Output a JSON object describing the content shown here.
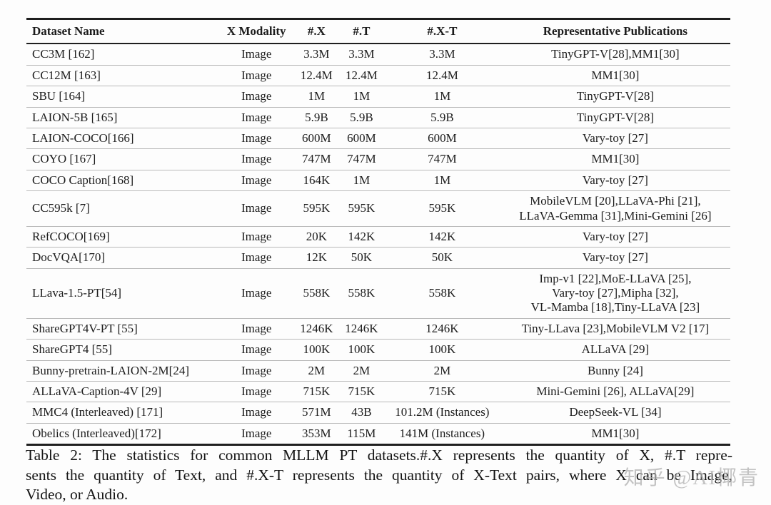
{
  "table": {
    "columns": [
      {
        "key": "dataset",
        "label": "Dataset Name"
      },
      {
        "key": "modality",
        "label": "X Modality"
      },
      {
        "key": "x",
        "label": "#.X"
      },
      {
        "key": "t",
        "label": "#.T"
      },
      {
        "key": "xt",
        "label": "#.X-T"
      },
      {
        "key": "pubs",
        "label": "Representative Publications"
      }
    ],
    "rows": [
      {
        "dataset": "CC3M [162]",
        "modality": "Image",
        "x": "3.3M",
        "t": "3.3M",
        "xt": "3.3M",
        "pubs": "TinyGPT-V[28],MM1[30]"
      },
      {
        "dataset": "CC12M [163]",
        "modality": "Image",
        "x": "12.4M",
        "t": "12.4M",
        "xt": "12.4M",
        "pubs": "MM1[30]"
      },
      {
        "dataset": "SBU [164]",
        "modality": "Image",
        "x": "1M",
        "t": "1M",
        "xt": "1M",
        "pubs": "TinyGPT-V[28]"
      },
      {
        "dataset": "LAION-5B [165]",
        "modality": "Image",
        "x": "5.9B",
        "t": "5.9B",
        "xt": "5.9B",
        "pubs": "TinyGPT-V[28]"
      },
      {
        "dataset": "LAION-COCO[166]",
        "modality": "Image",
        "x": "600M",
        "t": "600M",
        "xt": "600M",
        "pubs": "Vary-toy [27]"
      },
      {
        "dataset": "COYO [167]",
        "modality": "Image",
        "x": "747M",
        "t": "747M",
        "xt": "747M",
        "pubs": "MM1[30]"
      },
      {
        "dataset": "COCO Caption[168]",
        "modality": "Image",
        "x": "164K",
        "t": "1M",
        "xt": "1M",
        "pubs": "Vary-toy [27]"
      },
      {
        "dataset": "CC595k [7]",
        "modality": "Image",
        "x": "595K",
        "t": "595K",
        "xt": "595K",
        "pubs": "MobileVLM [20],LLaVA-Phi [21],\nLLaVA-Gemma [31],Mini-Gemini [26]"
      },
      {
        "dataset": "RefCOCO[169]",
        "modality": "Image",
        "x": "20K",
        "t": "142K",
        "xt": "142K",
        "pubs": "Vary-toy [27]"
      },
      {
        "dataset": "DocVQA[170]",
        "modality": "Image",
        "x": "12K",
        "t": "50K",
        "xt": "50K",
        "pubs": "Vary-toy [27]"
      },
      {
        "dataset": "LLava-1.5-PT[54]",
        "modality": "Image",
        "x": "558K",
        "t": "558K",
        "xt": "558K",
        "pubs": "Imp-v1 [22],MoE-LLaVA [25],\nVary-toy [27],Mipha [32],\nVL-Mamba [18],Tiny-LLaVA [23]"
      },
      {
        "dataset": "ShareGPT4V-PT [55]",
        "modality": "Image",
        "x": "1246K",
        "t": "1246K",
        "xt": "1246K",
        "pubs": "Tiny-LLava [23],MobileVLM V2 [17]"
      },
      {
        "dataset": "ShareGPT4 [55]",
        "modality": "Image",
        "x": "100K",
        "t": "100K",
        "xt": "100K",
        "pubs": "ALLaVA [29]"
      },
      {
        "dataset": "Bunny-pretrain-LAION-2M[24]",
        "modality": "Image",
        "x": "2M",
        "t": "2M",
        "xt": "2M",
        "pubs": "Bunny [24]"
      },
      {
        "dataset": "ALLaVA-Caption-4V [29]",
        "modality": "Image",
        "x": "715K",
        "t": "715K",
        "xt": "715K",
        "pubs": "Mini-Gemini [26], ALLaVA[29]"
      },
      {
        "dataset": "MMC4 (Interleaved) [171]",
        "modality": "Image",
        "x": "571M",
        "t": "43B",
        "xt": "101.2M (Instances)",
        "pubs": "DeepSeek-VL [34]"
      },
      {
        "dataset": "Obelics (Interleaved)[172]",
        "modality": "Image",
        "x": "353M",
        "t": "115M",
        "xt": "141M (Instances)",
        "pubs": "MM1[30]"
      }
    ]
  },
  "caption": {
    "lines": [
      "Table 2: The statistics for common MLLM PT datasets.#.X represents the quantity of X, #.T repre-",
      "sents the quantity of Text, and #.X-T represents the quantity of X-Text pairs, where X can be Image,",
      "Video, or Audio."
    ]
  },
  "watermark": {
    "text": "知乎 @AI椰青"
  },
  "colors": {
    "rule_heavy": "#1f1f1f",
    "rule_light": "#b9b9b9",
    "text": "#1c1c1c",
    "watermark": "#afafaf"
  }
}
